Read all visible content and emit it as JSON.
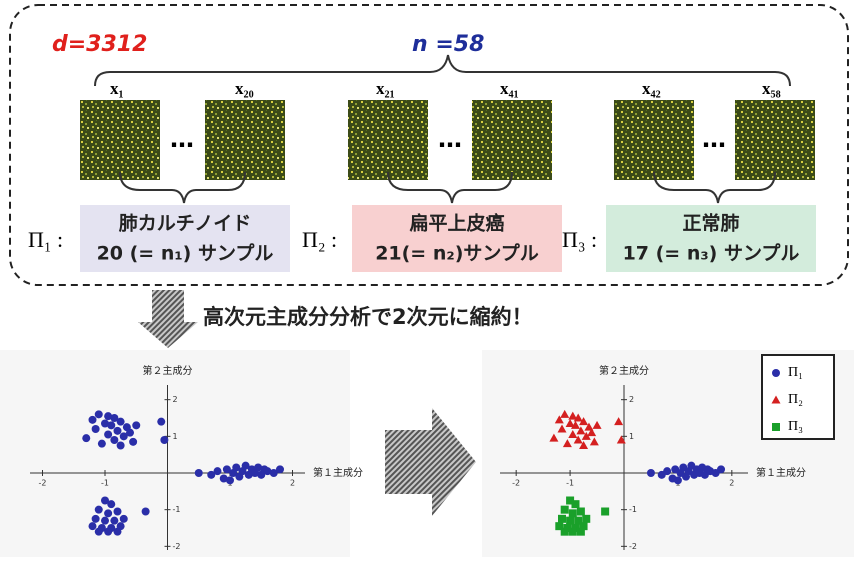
{
  "diagram": {
    "d_label": "d=3312",
    "n_label": "n =58",
    "sample_labels": [
      "x₁",
      "x₂₀",
      "x₂₁",
      "x₄₁",
      "x₄₂",
      "x₅₈"
    ],
    "groups": [
      {
        "symbol": "Π₁ :",
        "name": "肺カルチノイド",
        "count": "20 (= n₁) サンプル"
      },
      {
        "symbol": "Π₂ :",
        "name": "扁平上皮癌",
        "count": "21(= n₂)サンプル"
      },
      {
        "symbol": "Π₃ :",
        "name": "正常肺",
        "count": "17 (= n₃) サンプル"
      }
    ],
    "arrow_text": "高次元主成分分析で2次元に縮約！"
  },
  "chart_data": [
    {
      "type": "scatter",
      "xlabel": "第１主成分",
      "ylabel": "第２主成分",
      "xlim": [
        -2.2,
        2.2
      ],
      "ylim": [
        -2.1,
        2.4
      ],
      "xticks": [
        -2,
        -1,
        1,
        2
      ],
      "yticks": [
        -2,
        -1,
        1,
        2
      ],
      "series": [
        {
          "color": "#2a2ea8",
          "marker": "circle",
          "x": [
            0.5,
            0.7,
            0.8,
            0.9,
            0.95,
            1.0,
            1.05,
            1.1,
            1.15,
            1.2,
            1.25,
            1.3,
            1.35,
            1.4,
            1.45,
            1.5,
            1.55,
            1.6,
            1.7,
            1.8
          ],
          "y": [
            0.0,
            -0.05,
            0.05,
            -0.15,
            0.1,
            -0.2,
            0.0,
            0.15,
            -0.1,
            0.05,
            0.2,
            -0.05,
            0.1,
            0.0,
            0.15,
            -0.05,
            0.1,
            0.05,
            0.0,
            0.1
          ]
        },
        {
          "color": "#2a2ea8",
          "marker": "circle",
          "x": [
            -1.1,
            -0.95,
            -0.85,
            -0.75,
            -1.0,
            -0.9,
            -0.65,
            -1.15,
            -0.8,
            -0.6,
            -0.95,
            -0.7,
            -1.3,
            -0.85,
            -0.55,
            -1.05,
            -0.75,
            -0.5,
            -0.1,
            -0.05,
            -1.2
          ],
          "y": [
            1.6,
            1.55,
            1.5,
            1.4,
            1.35,
            1.3,
            1.25,
            1.2,
            1.15,
            1.1,
            1.05,
            1.0,
            0.95,
            0.9,
            0.85,
            0.8,
            0.75,
            1.3,
            1.4,
            0.9,
            1.45
          ]
        },
        {
          "color": "#2a2ea8",
          "marker": "circle",
          "x": [
            -1.0,
            -0.9,
            -1.1,
            -0.95,
            -0.8,
            -1.15,
            -1.0,
            -0.85,
            -0.7,
            -1.2,
            -1.05,
            -0.9,
            -0.75,
            -1.1,
            -0.95,
            -0.8,
            -0.35
          ],
          "y": [
            -0.75,
            -0.85,
            -1.0,
            -1.1,
            -1.05,
            -1.25,
            -1.3,
            -1.3,
            -1.25,
            -1.45,
            -1.5,
            -1.5,
            -1.45,
            -1.6,
            -1.6,
            -1.6,
            -1.05
          ]
        }
      ]
    },
    {
      "type": "scatter",
      "ylabel": "第２主成分",
      "xlabel": "第１主成分",
      "xlim": [
        -2.3,
        2.3
      ],
      "ylim": [
        -2.1,
        2.4
      ],
      "xticks": [
        -2,
        -1,
        1,
        2
      ],
      "yticks": [
        -2,
        -1,
        1,
        2
      ],
      "series": [
        {
          "name": "Π₁",
          "color": "#2a2ea8",
          "marker": "circle",
          "x": [
            0.5,
            0.7,
            0.8,
            0.9,
            0.95,
            1.0,
            1.05,
            1.1,
            1.15,
            1.2,
            1.25,
            1.3,
            1.35,
            1.4,
            1.45,
            1.5,
            1.55,
            1.6,
            1.7,
            1.8
          ],
          "y": [
            0.0,
            -0.05,
            0.05,
            -0.15,
            0.1,
            -0.2,
            0.0,
            0.15,
            -0.1,
            0.05,
            0.2,
            -0.05,
            0.1,
            0.0,
            0.15,
            -0.05,
            0.1,
            0.05,
            0.0,
            0.1
          ]
        },
        {
          "name": "Π₂",
          "color": "#d42020",
          "marker": "triangle",
          "x": [
            -1.1,
            -0.95,
            -0.85,
            -0.75,
            -1.0,
            -0.9,
            -0.65,
            -1.15,
            -0.8,
            -0.6,
            -0.95,
            -0.7,
            -1.3,
            -0.85,
            -0.55,
            -1.05,
            -0.75,
            -0.5,
            -0.1,
            -0.05,
            -1.2
          ],
          "y": [
            1.6,
            1.55,
            1.5,
            1.4,
            1.35,
            1.3,
            1.25,
            1.2,
            1.15,
            1.1,
            1.05,
            1.0,
            0.95,
            0.9,
            0.85,
            0.8,
            0.75,
            1.3,
            1.4,
            0.9,
            1.45
          ]
        },
        {
          "name": "Π₃",
          "color": "#1aa02a",
          "marker": "square",
          "x": [
            -1.0,
            -0.9,
            -1.1,
            -0.95,
            -0.8,
            -1.15,
            -1.0,
            -0.85,
            -0.7,
            -1.2,
            -1.05,
            -0.9,
            -0.75,
            -1.1,
            -0.95,
            -0.8,
            -0.35
          ],
          "y": [
            -0.75,
            -0.85,
            -1.0,
            -1.1,
            -1.05,
            -1.25,
            -1.3,
            -1.3,
            -1.25,
            -1.45,
            -1.5,
            -1.5,
            -1.45,
            -1.6,
            -1.6,
            -1.6,
            -1.05
          ]
        }
      ]
    }
  ]
}
